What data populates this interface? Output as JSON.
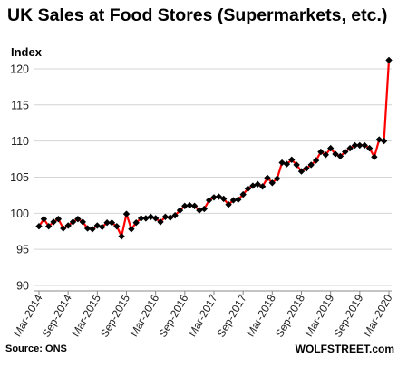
{
  "chart_data": {
    "type": "line",
    "title": "UK Sales at Food Stores (Supermarkets,  etc.)",
    "ylabel": "Index",
    "xlabel": "",
    "ylim": [
      90,
      122
    ],
    "yticks": [
      90,
      95,
      100,
      105,
      110,
      115,
      120
    ],
    "grid": "horizontal",
    "series": [
      {
        "color": "#ff0000",
        "marker_color": "#000000",
        "x": [
          "Mar-2014",
          "Apr-2014",
          "May-2014",
          "Jun-2014",
          "Jul-2014",
          "Aug-2014",
          "Sep-2014",
          "Oct-2014",
          "Nov-2014",
          "Dec-2014",
          "Jan-2015",
          "Feb-2015",
          "Mar-2015",
          "Apr-2015",
          "May-2015",
          "Jun-2015",
          "Jul-2015",
          "Aug-2015",
          "Sep-2015",
          "Oct-2015",
          "Nov-2015",
          "Dec-2015",
          "Jan-2016",
          "Feb-2016",
          "Mar-2016",
          "Apr-2016",
          "May-2016",
          "Jun-2016",
          "Jul-2016",
          "Aug-2016",
          "Sep-2016",
          "Oct-2016",
          "Nov-2016",
          "Dec-2016",
          "Jan-2017",
          "Feb-2017",
          "Mar-2017",
          "Apr-2017",
          "May-2017",
          "Jun-2017",
          "Jul-2017",
          "Aug-2017",
          "Sep-2017",
          "Oct-2017",
          "Nov-2017",
          "Dec-2017",
          "Jan-2018",
          "Feb-2018",
          "Mar-2018",
          "Apr-2018",
          "May-2018",
          "Jun-2018",
          "Jul-2018",
          "Aug-2018",
          "Sep-2018",
          "Oct-2018",
          "Nov-2018",
          "Dec-2018",
          "Jan-2019",
          "Feb-2019",
          "Mar-2019",
          "Apr-2019",
          "May-2019",
          "Jun-2019",
          "Jul-2019",
          "Aug-2019",
          "Sep-2019",
          "Oct-2019",
          "Nov-2019",
          "Dec-2019",
          "Jan-2020",
          "Feb-2020",
          "Mar-2020"
        ],
        "values": [
          98.2,
          99.2,
          98.2,
          98.8,
          99.2,
          97.9,
          98.3,
          98.8,
          99.2,
          98.8,
          97.9,
          97.8,
          98.3,
          98.1,
          98.7,
          98.7,
          98.2,
          96.8,
          99.9,
          97.8,
          98.7,
          99.3,
          99.3,
          99.5,
          99.3,
          98.8,
          99.5,
          99.4,
          99.7,
          100.4,
          101.0,
          101.1,
          101.0,
          100.4,
          100.6,
          101.8,
          102.2,
          102.3,
          102.0,
          101.2,
          101.8,
          101.9,
          102.6,
          103.4,
          103.8,
          104.0,
          103.7,
          104.9,
          104.2,
          104.8,
          107.0,
          106.8,
          107.4,
          106.7,
          105.8,
          106.2,
          106.7,
          107.3,
          108.5,
          108.1,
          109.0,
          108.2,
          107.9,
          108.5,
          109.0,
          109.4,
          109.4,
          109.4,
          109.0,
          107.8,
          110.2,
          110.0,
          121.2
        ]
      }
    ],
    "x_tick_labels": [
      "Mar-2014",
      "Sep-2014",
      "Mar-2015",
      "Sep-2015",
      "Mar-2016",
      "Sep-2016",
      "Mar-2017",
      "Sep-2017",
      "Mar-2018",
      "Sep-2018",
      "Mar-2019",
      "Sep-2019",
      "Mar-2020"
    ]
  },
  "footer": {
    "source": "Source: ONS",
    "brand": "WOLFSTREET.com"
  }
}
